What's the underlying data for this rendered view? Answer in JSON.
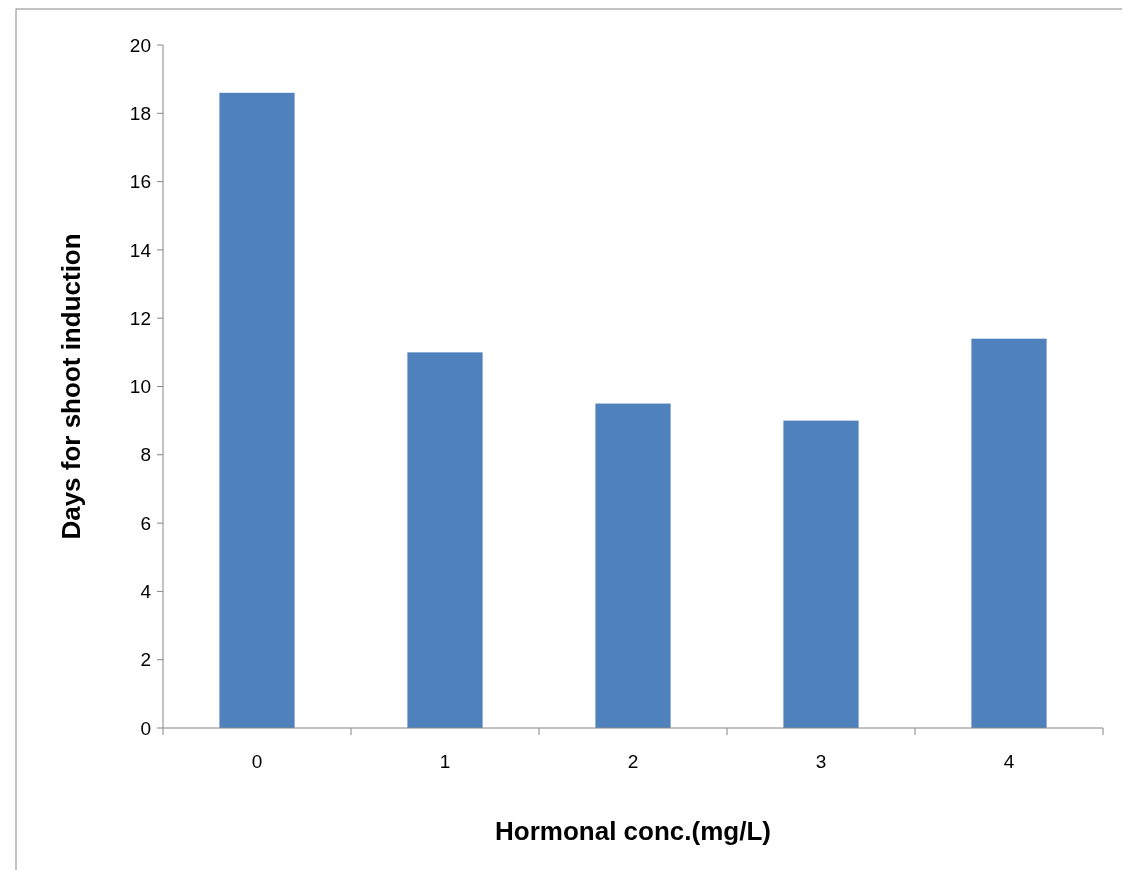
{
  "chart_data": {
    "type": "bar",
    "xlabel": "Hormonal conc.(mg/L)",
    "ylabel": "Days for shoot induction",
    "categories": [
      "0",
      "1",
      "2",
      "3",
      "4"
    ],
    "values": [
      18.6,
      11,
      9.5,
      9,
      11.4
    ],
    "color": "#4f81bd",
    "ylim": [
      0,
      20
    ],
    "yticks": [
      0,
      2,
      4,
      6,
      8,
      10,
      12,
      14,
      16,
      18,
      20
    ],
    "grid": false
  }
}
